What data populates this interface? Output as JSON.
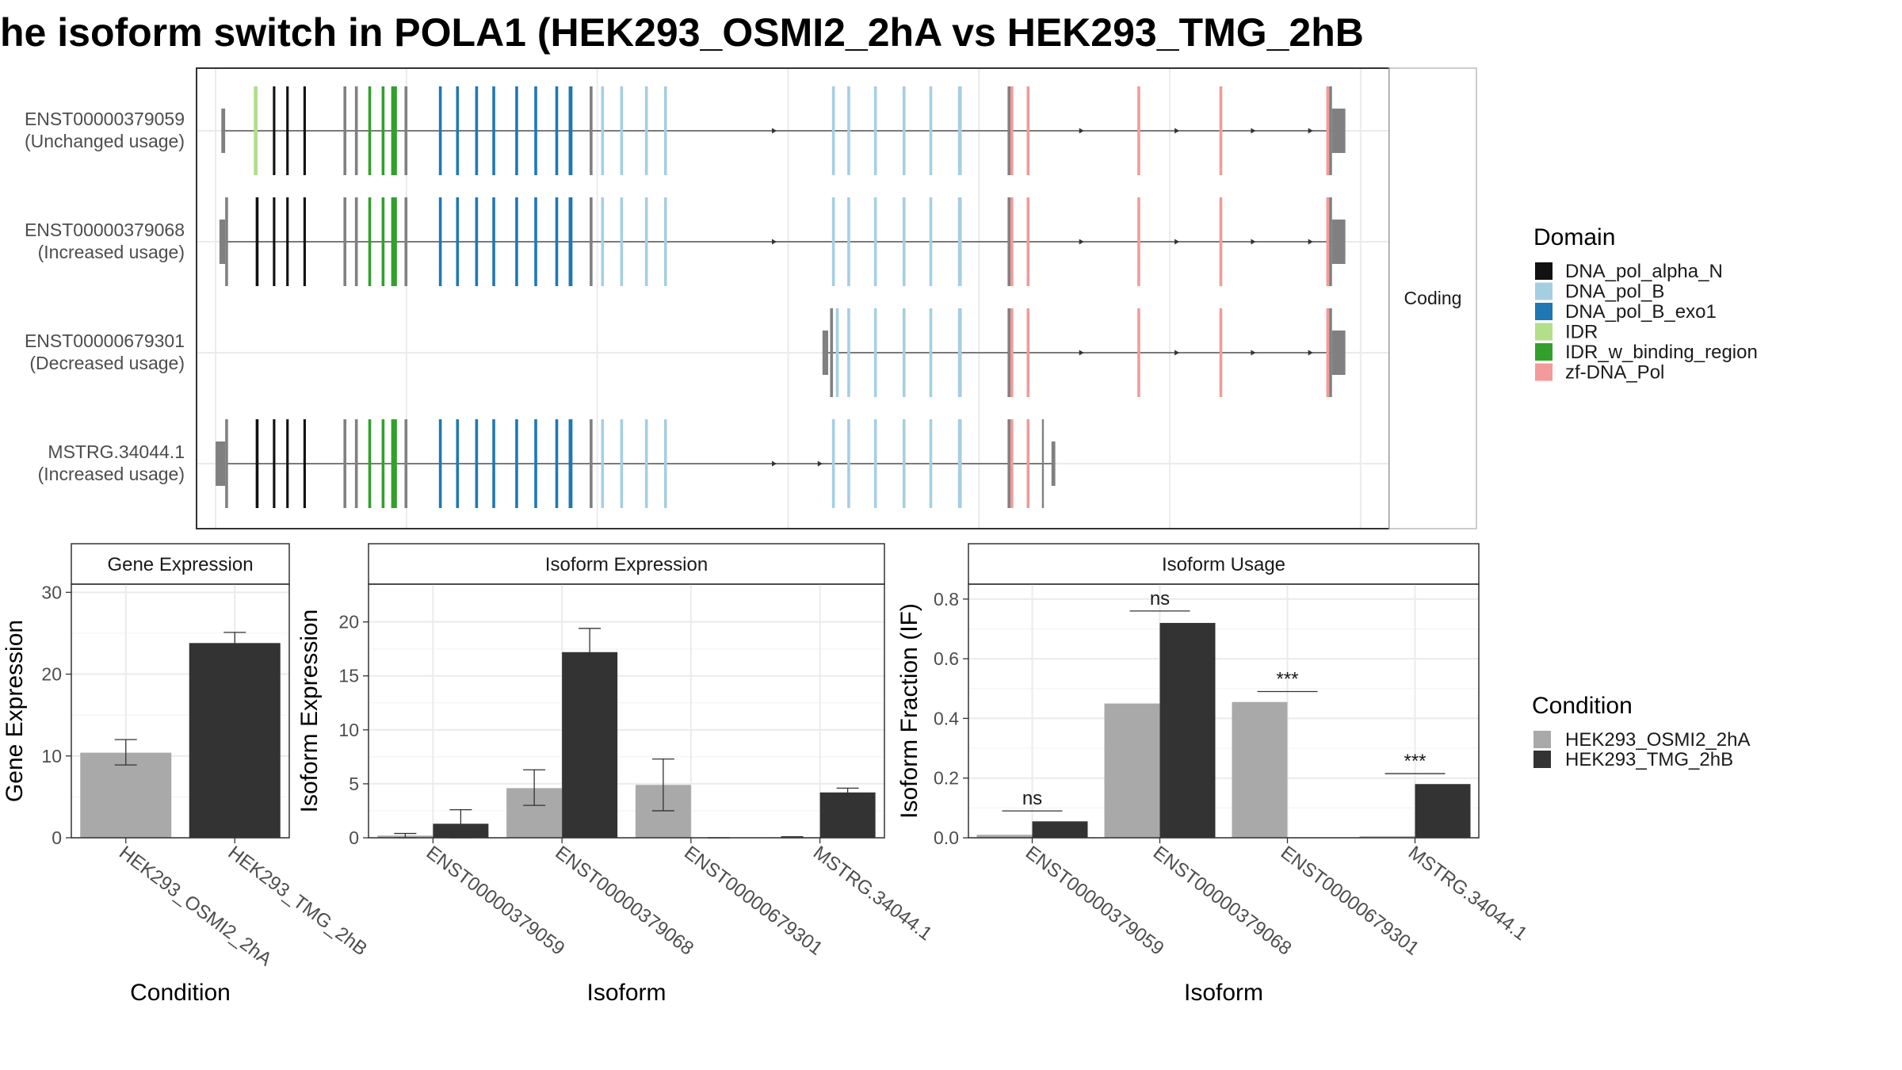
{
  "title": "he isoform switch in POLA1 (HEK293_OSMI2_2hA vs HEK293_TMG_2hB",
  "colors": {
    "DNA_pol_alpha_N": "#111111",
    "DNA_pol_B": "#a6cee3",
    "DNA_pol_B_exo1": "#1f78b4",
    "IDR": "#b2df8a",
    "IDR_w_binding_region": "#33a02c",
    "zf-DNA_Pol": "#f39a9a",
    "none": "#808080",
    "cond1": "#a9a9a9",
    "cond2": "#333333"
  },
  "structure": {
    "strip_label": "Coding",
    "legend_title": "Domain",
    "legend_items": [
      {
        "key": "DNA_pol_alpha_N",
        "label": "DNA_pol_alpha_N"
      },
      {
        "key": "DNA_pol_B",
        "label": "DNA_pol_B"
      },
      {
        "key": "DNA_pol_B_exo1",
        "label": "DNA_pol_B_exo1"
      },
      {
        "key": "IDR",
        "label": "IDR"
      },
      {
        "key": "IDR_w_binding_region",
        "label": "IDR_w_binding_region"
      },
      {
        "key": "zf-DNA_Pol",
        "label": "zf-DNA_Pol"
      }
    ],
    "transcripts": [
      {
        "id": "ENST00000379059",
        "usage": "(Unchanged usage)",
        "start": 3,
        "end": 590,
        "exons": [
          {
            "s": 3,
            "e": 5,
            "d": "none",
            "utr": true
          },
          {
            "s": 20,
            "e": 22,
            "d": "IDR"
          },
          {
            "s": 30,
            "e": 31.3,
            "d": "DNA_pol_alpha_N"
          },
          {
            "s": 37,
            "e": 38.3,
            "d": "DNA_pol_alpha_N"
          },
          {
            "s": 46,
            "e": 47.3,
            "d": "DNA_pol_alpha_N"
          },
          {
            "s": 67,
            "e": 68.5,
            "d": "none"
          },
          {
            "s": 73,
            "e": 74.5,
            "d": "none"
          },
          {
            "s": 80,
            "e": 81.5,
            "d": "IDR_w_binding_region"
          },
          {
            "s": 87,
            "e": 88.5,
            "d": "IDR_w_binding_region"
          },
          {
            "s": 92,
            "e": 95,
            "d": "IDR_w_binding_region"
          },
          {
            "s": 99,
            "e": 100.5,
            "d": "none"
          },
          {
            "s": 117,
            "e": 118.5,
            "d": "DNA_pol_B_exo1"
          },
          {
            "s": 126,
            "e": 127.5,
            "d": "DNA_pol_B_exo1"
          },
          {
            "s": 136,
            "e": 137.5,
            "d": "DNA_pol_B_exo1"
          },
          {
            "s": 145,
            "e": 146.5,
            "d": "DNA_pol_B_exo1"
          },
          {
            "s": 157,
            "e": 158.5,
            "d": "DNA_pol_B_exo1"
          },
          {
            "s": 167,
            "e": 168.5,
            "d": "DNA_pol_B_exo1"
          },
          {
            "s": 178,
            "e": 179.5,
            "d": "DNA_pol_B_exo1"
          },
          {
            "s": 185,
            "e": 187,
            "d": "DNA_pol_B_exo1"
          },
          {
            "s": 196,
            "e": 197.5,
            "d": "none"
          },
          {
            "s": 202,
            "e": 203.5,
            "d": "DNA_pol_B"
          },
          {
            "s": 212,
            "e": 213.5,
            "d": "DNA_pol_B"
          },
          {
            "s": 225,
            "e": 226.5,
            "d": "DNA_pol_B"
          },
          {
            "s": 235,
            "e": 236.5,
            "d": "DNA_pol_B"
          },
          {
            "s": 323,
            "e": 324.5,
            "d": "DNA_pol_B"
          },
          {
            "s": 331,
            "e": 332.5,
            "d": "DNA_pol_B"
          },
          {
            "s": 345,
            "e": 346.5,
            "d": "DNA_pol_B"
          },
          {
            "s": 360,
            "e": 361.5,
            "d": "DNA_pol_B"
          },
          {
            "s": 374,
            "e": 375.5,
            "d": "DNA_pol_B"
          },
          {
            "s": 389,
            "e": 391,
            "d": "DNA_pol_B"
          },
          {
            "s": 415,
            "e": 416.5,
            "d": "none"
          },
          {
            "s": 416.5,
            "e": 418,
            "d": "zf-DNA_Pol"
          },
          {
            "s": 425,
            "e": 426.5,
            "d": "zf-DNA_Pol"
          },
          {
            "s": 483,
            "e": 484.5,
            "d": "zf-DNA_Pol"
          },
          {
            "s": 526,
            "e": 527.5,
            "d": "zf-DNA_Pol"
          },
          {
            "s": 582,
            "e": 583.5,
            "d": "zf-DNA_Pol"
          },
          {
            "s": 583.5,
            "e": 585,
            "d": "none"
          },
          {
            "s": 585,
            "e": 592,
            "d": "none",
            "utr": true
          }
        ],
        "arrows": [
          294,
          455,
          505,
          545,
          575
        ]
      },
      {
        "id": "ENST00000379068",
        "usage": "(Increased usage)",
        "start": 2,
        "end": 590,
        "exons": [
          {
            "s": 2,
            "e": 5,
            "d": "none",
            "utr": true
          },
          {
            "s": 5,
            "e": 6.5,
            "d": "none"
          },
          {
            "s": 21,
            "e": 22.5,
            "d": "DNA_pol_alpha_N"
          },
          {
            "s": 30,
            "e": 31.3,
            "d": "DNA_pol_alpha_N"
          },
          {
            "s": 37,
            "e": 38.3,
            "d": "DNA_pol_alpha_N"
          },
          {
            "s": 46,
            "e": 47.3,
            "d": "DNA_pol_alpha_N"
          },
          {
            "s": 67,
            "e": 68.5,
            "d": "none"
          },
          {
            "s": 73,
            "e": 74.5,
            "d": "none"
          },
          {
            "s": 80,
            "e": 81.5,
            "d": "IDR_w_binding_region"
          },
          {
            "s": 87,
            "e": 88.5,
            "d": "IDR_w_binding_region"
          },
          {
            "s": 92,
            "e": 95,
            "d": "IDR_w_binding_region"
          },
          {
            "s": 99,
            "e": 100.5,
            "d": "none"
          },
          {
            "s": 117,
            "e": 118.5,
            "d": "DNA_pol_B_exo1"
          },
          {
            "s": 126,
            "e": 127.5,
            "d": "DNA_pol_B_exo1"
          },
          {
            "s": 136,
            "e": 137.5,
            "d": "DNA_pol_B_exo1"
          },
          {
            "s": 145,
            "e": 146.5,
            "d": "DNA_pol_B_exo1"
          },
          {
            "s": 157,
            "e": 158.5,
            "d": "DNA_pol_B_exo1"
          },
          {
            "s": 167,
            "e": 168.5,
            "d": "DNA_pol_B_exo1"
          },
          {
            "s": 178,
            "e": 179.5,
            "d": "DNA_pol_B_exo1"
          },
          {
            "s": 185,
            "e": 187,
            "d": "DNA_pol_B_exo1"
          },
          {
            "s": 196,
            "e": 197.5,
            "d": "none"
          },
          {
            "s": 202,
            "e": 203.5,
            "d": "DNA_pol_B"
          },
          {
            "s": 212,
            "e": 213.5,
            "d": "DNA_pol_B"
          },
          {
            "s": 225,
            "e": 226.5,
            "d": "DNA_pol_B"
          },
          {
            "s": 235,
            "e": 236.5,
            "d": "DNA_pol_B"
          },
          {
            "s": 323,
            "e": 324.5,
            "d": "DNA_pol_B"
          },
          {
            "s": 331,
            "e": 332.5,
            "d": "DNA_pol_B"
          },
          {
            "s": 345,
            "e": 346.5,
            "d": "DNA_pol_B"
          },
          {
            "s": 360,
            "e": 361.5,
            "d": "DNA_pol_B"
          },
          {
            "s": 374,
            "e": 375.5,
            "d": "DNA_pol_B"
          },
          {
            "s": 389,
            "e": 391,
            "d": "DNA_pol_B"
          },
          {
            "s": 415,
            "e": 416.5,
            "d": "none"
          },
          {
            "s": 416.5,
            "e": 418,
            "d": "zf-DNA_Pol"
          },
          {
            "s": 425,
            "e": 426.5,
            "d": "zf-DNA_Pol"
          },
          {
            "s": 483,
            "e": 484.5,
            "d": "zf-DNA_Pol"
          },
          {
            "s": 526,
            "e": 527.5,
            "d": "zf-DNA_Pol"
          },
          {
            "s": 582,
            "e": 583.5,
            "d": "zf-DNA_Pol"
          },
          {
            "s": 583.5,
            "e": 585,
            "d": "none"
          },
          {
            "s": 585,
            "e": 592,
            "d": "none",
            "utr": true
          }
        ],
        "arrows": [
          294,
          455,
          505,
          545,
          575
        ]
      },
      {
        "id": "ENST00000679301",
        "usage": "(Decreased usage)",
        "start": 318,
        "end": 590,
        "exons": [
          {
            "s": 318,
            "e": 321,
            "d": "none",
            "utr": true
          },
          {
            "s": 322,
            "e": 323.5,
            "d": "none"
          },
          {
            "s": 325,
            "e": 326.5,
            "d": "DNA_pol_B"
          },
          {
            "s": 331,
            "e": 332.5,
            "d": "DNA_pol_B"
          },
          {
            "s": 345,
            "e": 346.5,
            "d": "DNA_pol_B"
          },
          {
            "s": 360,
            "e": 361.5,
            "d": "DNA_pol_B"
          },
          {
            "s": 374,
            "e": 375.5,
            "d": "DNA_pol_B"
          },
          {
            "s": 389,
            "e": 391,
            "d": "DNA_pol_B"
          },
          {
            "s": 415,
            "e": 416.5,
            "d": "none"
          },
          {
            "s": 416.5,
            "e": 418,
            "d": "zf-DNA_Pol"
          },
          {
            "s": 425,
            "e": 426.5,
            "d": "zf-DNA_Pol"
          },
          {
            "s": 483,
            "e": 484.5,
            "d": "zf-DNA_Pol"
          },
          {
            "s": 526,
            "e": 527.5,
            "d": "zf-DNA_Pol"
          },
          {
            "s": 582,
            "e": 583.5,
            "d": "zf-DNA_Pol"
          },
          {
            "s": 583.5,
            "e": 585,
            "d": "none"
          },
          {
            "s": 585,
            "e": 592,
            "d": "none",
            "utr": true
          }
        ],
        "arrows": [
          455,
          505,
          545,
          575
        ]
      },
      {
        "id": "MSTRG.34044.1",
        "usage": "(Increased usage)",
        "start": 0,
        "end": 440,
        "exons": [
          {
            "s": 0,
            "e": 5,
            "d": "none",
            "utr": true
          },
          {
            "s": 5,
            "e": 6.5,
            "d": "none"
          },
          {
            "s": 21,
            "e": 22.5,
            "d": "DNA_pol_alpha_N"
          },
          {
            "s": 30,
            "e": 31.3,
            "d": "DNA_pol_alpha_N"
          },
          {
            "s": 37,
            "e": 38.3,
            "d": "DNA_pol_alpha_N"
          },
          {
            "s": 46,
            "e": 47.3,
            "d": "DNA_pol_alpha_N"
          },
          {
            "s": 67,
            "e": 68.5,
            "d": "none"
          },
          {
            "s": 73,
            "e": 74.5,
            "d": "none"
          },
          {
            "s": 80,
            "e": 81.5,
            "d": "IDR_w_binding_region"
          },
          {
            "s": 87,
            "e": 88.5,
            "d": "IDR_w_binding_region"
          },
          {
            "s": 92,
            "e": 95,
            "d": "IDR_w_binding_region"
          },
          {
            "s": 99,
            "e": 100.5,
            "d": "none"
          },
          {
            "s": 117,
            "e": 118.5,
            "d": "DNA_pol_B_exo1"
          },
          {
            "s": 126,
            "e": 127.5,
            "d": "DNA_pol_B_exo1"
          },
          {
            "s": 136,
            "e": 137.5,
            "d": "DNA_pol_B_exo1"
          },
          {
            "s": 145,
            "e": 146.5,
            "d": "DNA_pol_B_exo1"
          },
          {
            "s": 157,
            "e": 158.5,
            "d": "DNA_pol_B_exo1"
          },
          {
            "s": 167,
            "e": 168.5,
            "d": "DNA_pol_B_exo1"
          },
          {
            "s": 178,
            "e": 179.5,
            "d": "DNA_pol_B_exo1"
          },
          {
            "s": 185,
            "e": 187,
            "d": "DNA_pol_B_exo1"
          },
          {
            "s": 196,
            "e": 197.5,
            "d": "none"
          },
          {
            "s": 202,
            "e": 203.5,
            "d": "DNA_pol_B"
          },
          {
            "s": 212,
            "e": 213.5,
            "d": "DNA_pol_B"
          },
          {
            "s": 225,
            "e": 226.5,
            "d": "DNA_pol_B"
          },
          {
            "s": 235,
            "e": 236.5,
            "d": "DNA_pol_B"
          },
          {
            "s": 323,
            "e": 324.5,
            "d": "DNA_pol_B"
          },
          {
            "s": 331,
            "e": 332.5,
            "d": "DNA_pol_B"
          },
          {
            "s": 345,
            "e": 346.5,
            "d": "DNA_pol_B"
          },
          {
            "s": 360,
            "e": 361.5,
            "d": "DNA_pol_B"
          },
          {
            "s": 374,
            "e": 375.5,
            "d": "DNA_pol_B"
          },
          {
            "s": 389,
            "e": 391,
            "d": "DNA_pol_B"
          },
          {
            "s": 415,
            "e": 416.5,
            "d": "none"
          },
          {
            "s": 416.5,
            "e": 418,
            "d": "zf-DNA_Pol"
          },
          {
            "s": 425,
            "e": 426.5,
            "d": "zf-DNA_Pol"
          },
          {
            "s": 433,
            "e": 434,
            "d": "none"
          },
          {
            "s": 438,
            "e": 440,
            "d": "none",
            "utr": true
          }
        ],
        "arrows": [
          294,
          318
        ]
      }
    ]
  },
  "condition_legend": {
    "title": "Condition",
    "items": [
      {
        "key": "cond1",
        "label": "HEK293_OSMI2_2hA"
      },
      {
        "key": "cond2",
        "label": "HEK293_TMG_2hB"
      }
    ]
  },
  "chart_data": [
    {
      "type": "bar",
      "title": "Gene Expression",
      "xlabel": "Condition",
      "ylabel": "Gene Expression",
      "ylim": [
        0,
        31
      ],
      "yticks": [
        0,
        10,
        20,
        30
      ],
      "categories": [
        "HEK293_OSMI2_2hA",
        "HEK293_TMG_2hB"
      ],
      "series": [
        {
          "name": "HEK293_OSMI2_2hA",
          "values": [
            10.4,
            null
          ],
          "err_low": [
            8.9,
            null
          ],
          "err_high": [
            12.0,
            null
          ]
        },
        {
          "name": "HEK293_TMG_2hB",
          "values": [
            null,
            23.8
          ],
          "err_low": [
            null,
            22.6
          ],
          "err_high": [
            null,
            25.1
          ]
        }
      ]
    },
    {
      "type": "bar",
      "title": "Isoform Expression",
      "xlabel": "Isoform",
      "ylabel": "Isoform Expression",
      "ylim": [
        0,
        23.5
      ],
      "yticks": [
        0,
        5,
        10,
        15,
        20
      ],
      "categories": [
        "ENST00000379059",
        "ENST00000379068",
        "ENST00000679301",
        "MSTRG.34044.1"
      ],
      "series": [
        {
          "name": "HEK293_OSMI2_2hA",
          "values": [
            0.2,
            4.6,
            4.9,
            0.05
          ],
          "err_low": [
            0.0,
            3.0,
            2.5,
            0.0
          ],
          "err_high": [
            0.4,
            6.3,
            7.3,
            0.1
          ]
        },
        {
          "name": "HEK293_TMG_2hB",
          "values": [
            1.3,
            17.2,
            0.0,
            4.2
          ],
          "err_low": [
            0.0,
            15.0,
            0.0,
            3.8
          ],
          "err_high": [
            2.6,
            19.4,
            0.0,
            4.6
          ]
        }
      ]
    },
    {
      "type": "bar",
      "title": "Isoform Usage",
      "xlabel": "Isoform",
      "ylabel": "Isoform Fraction (IF)",
      "ylim": [
        0,
        0.85
      ],
      "yticks": [
        0.0,
        0.2,
        0.4,
        0.6,
        0.8
      ],
      "ytick_labels": [
        "0.0",
        "0.2",
        "0.4",
        "0.6",
        "0.8"
      ],
      "categories": [
        "ENST00000379059",
        "ENST00000379068",
        "ENST00000679301",
        "MSTRG.34044.1"
      ],
      "series": [
        {
          "name": "HEK293_OSMI2_2hA",
          "values": [
            0.01,
            0.45,
            0.455,
            0.005
          ]
        },
        {
          "name": "HEK293_TMG_2hB",
          "values": [
            0.055,
            0.72,
            0.0,
            0.18
          ]
        }
      ],
      "significance": [
        {
          "label": "ns",
          "y": 0.09
        },
        {
          "label": "ns",
          "y": 0.76
        },
        {
          "label": "***",
          "y": 0.49
        },
        {
          "label": "***",
          "y": 0.215
        }
      ]
    }
  ]
}
